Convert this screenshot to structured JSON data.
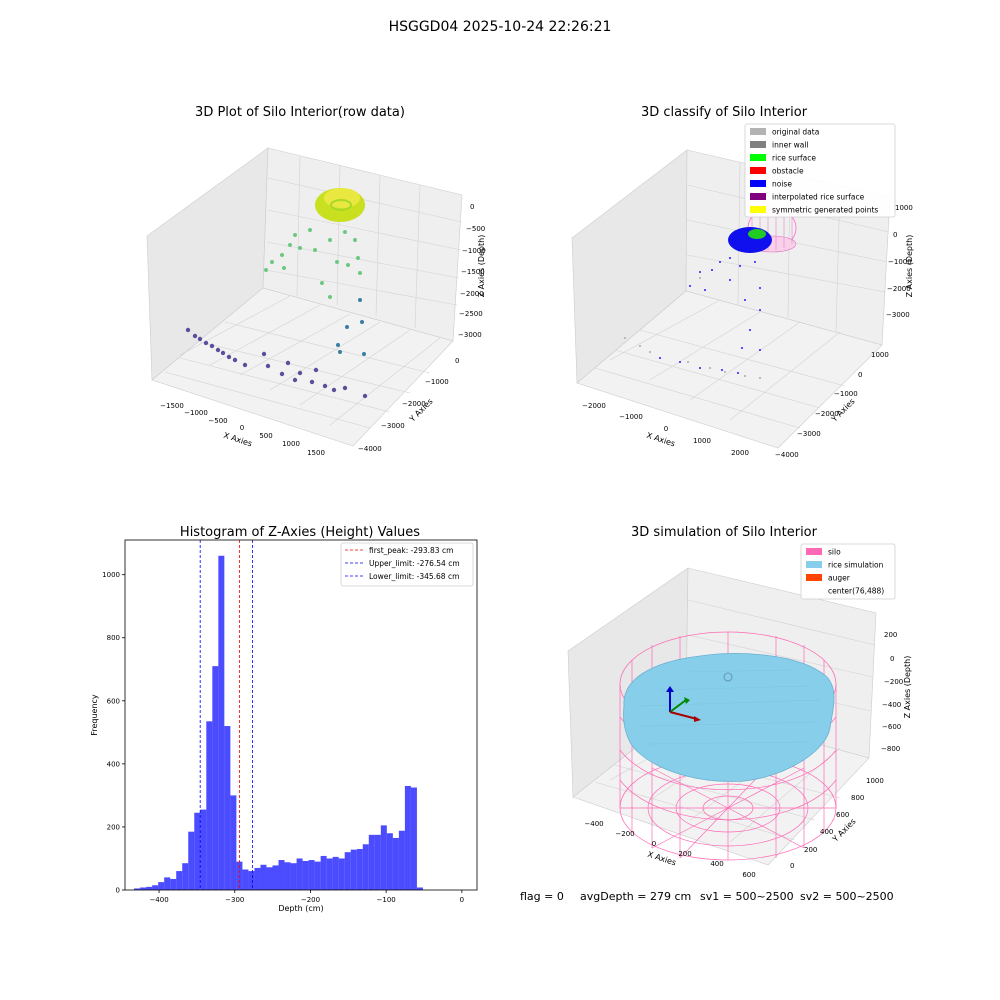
{
  "figure": {
    "suptitle": "HSGGD04 2025-10-24 22:26:21"
  },
  "panels": {
    "raw": {
      "title": "3D Plot of Silo Interior(row data)",
      "xlabel": "X Axies",
      "ylabel": "Y Axies",
      "zlabel": "Z Axies (Depth)",
      "xticks": [
        "−1500",
        "−1000",
        "−500",
        "0",
        "500",
        "1000",
        "1500"
      ],
      "yticks": [
        "0",
        "−1000",
        "−2000",
        "−3000",
        "−4000"
      ],
      "zticks": [
        "0",
        "−500",
        "−1000",
        "−1500",
        "−2000",
        "−2500",
        "−3000"
      ]
    },
    "classify": {
      "title": "3D classify of Silo Interior",
      "xlabel": "X Axies",
      "ylabel": "Y Axies",
      "zlabel": "Z Axies (Depth)",
      "xticks": [
        "−2000",
        "−1000",
        "0",
        "1000",
        "2000"
      ],
      "yticks": [
        "1000",
        "0",
        "−1000",
        "−2000",
        "−3000",
        "−4000"
      ],
      "zticks": [
        "1000",
        "0",
        "−1000",
        "−2000",
        "−3000"
      ],
      "legend": [
        {
          "label": "original data",
          "color": "#b3b3b3"
        },
        {
          "label": "inner wall",
          "color": "#808080"
        },
        {
          "label": "rice surface",
          "color": "#00ff00"
        },
        {
          "label": "obstacle",
          "color": "#ff0000"
        },
        {
          "label": "noise",
          "color": "#0000ff"
        },
        {
          "label": "interpolated rice surface",
          "color": "#800080"
        },
        {
          "label": "symmetric generated points",
          "color": "#ffff00"
        }
      ]
    },
    "histogram": {
      "title": "Histogram of Z-Axies (Height) Values",
      "xlabel": "Depth (cm)",
      "ylabel": "Frequency",
      "xticks": [
        "−400",
        "−300",
        "−200",
        "−100",
        "0"
      ],
      "yticks": [
        "0",
        "200",
        "400",
        "600",
        "800",
        "1000"
      ],
      "legend": [
        {
          "label": "first_peak: -293.83 cm",
          "color": "#ff0000"
        },
        {
          "label": "Upper_limit: -276.54 cm",
          "color": "#0000ff"
        },
        {
          "label": "Lower_limit: -345.68 cm",
          "color": "#0000ff"
        }
      ]
    },
    "simulation": {
      "title": "3D simulation of Silo Interior",
      "xlabel": "X Axies",
      "ylabel": "Y Axies",
      "zlabel": "Z Axies (Depth)",
      "xticks": [
        "−400",
        "−200",
        "0",
        "200",
        "400",
        "600"
      ],
      "yticks": [
        "0",
        "200",
        "400",
        "600",
        "800",
        "1000"
      ],
      "zticks": [
        "200",
        "0",
        "−200",
        "−400",
        "−600",
        "−800"
      ],
      "legend": [
        {
          "label": "silo",
          "color": "#ff69b4"
        },
        {
          "label": "rice simulation",
          "color": "#87ceeb"
        },
        {
          "label": "auger",
          "color": "#ff4500"
        },
        {
          "label": "center(76,488)",
          "color": ""
        }
      ]
    }
  },
  "footer": {
    "flag": "flag = 0",
    "avg": "avgDepth = 279 cm",
    "sv1": "sv1 = 500~2500",
    "sv2": "sv2 = 500~2500"
  },
  "chart_data": [
    {
      "type": "scatter",
      "title": "3D Plot of Silo Interior(row data)",
      "xlabel": "X Axies",
      "ylabel": "Y Axies",
      "zlabel": "Z Axies (Depth)",
      "xlim": [
        -1700,
        1700
      ],
      "ylim": [
        -4000,
        300
      ],
      "zlim": [
        -3200,
        200
      ],
      "colormap": "viridis",
      "note": "point cloud: dense yellow ring near the top, sparse green points falling, purple points along the floor"
    },
    {
      "type": "scatter",
      "title": "3D classify of Silo Interior",
      "xlabel": "X Axies",
      "ylabel": "Y Axies",
      "zlabel": "Z Axies (Depth)",
      "xlim": [
        -2200,
        2200
      ],
      "ylim": [
        -4000,
        1200
      ],
      "zlim": [
        -3200,
        1200
      ],
      "series": [
        {
          "name": "original data"
        },
        {
          "name": "inner wall"
        },
        {
          "name": "rice surface"
        },
        {
          "name": "obstacle"
        },
        {
          "name": "noise"
        },
        {
          "name": "interpolated rice surface"
        },
        {
          "name": "symmetric generated points"
        }
      ]
    },
    {
      "type": "bar",
      "title": "Histogram of Z-Axies (Height) Values",
      "xlabel": "Depth (cm)",
      "ylabel": "Frequency",
      "xlim": [
        -445,
        20
      ],
      "ylim": [
        0,
        1110
      ],
      "bin_start": -433,
      "bin_width": 7.95,
      "values": [
        5,
        8,
        10,
        15,
        25,
        40,
        35,
        60,
        85,
        185,
        245,
        255,
        535,
        710,
        1060,
        520,
        300,
        90,
        65,
        60,
        70,
        80,
        72,
        78,
        95,
        88,
        85,
        100,
        92,
        95,
        90,
        108,
        100,
        105,
        100,
        120,
        128,
        130,
        145,
        175,
        175,
        205,
        180,
        165,
        188,
        330,
        325,
        8
      ],
      "lines": [
        {
          "label": "first_peak: -293.83 cm",
          "x": -293.83,
          "color": "#ff0000"
        },
        {
          "label": "Upper_limit: -276.54 cm",
          "x": -276.54,
          "color": "#0000ff"
        },
        {
          "label": "Lower_limit: -345.68 cm",
          "x": -345.68,
          "color": "#0000ff"
        }
      ]
    },
    {
      "type": "surface",
      "title": "3D simulation of Silo Interior",
      "xlabel": "X Axies",
      "ylabel": "Y Axies",
      "zlabel": "Z Axies (Depth)",
      "xlim": [
        -500,
        650
      ],
      "ylim": [
        -50,
        1050
      ],
      "zlim": [
        -900,
        300
      ],
      "series": [
        {
          "name": "silo"
        },
        {
          "name": "rice simulation"
        },
        {
          "name": "auger"
        }
      ],
      "center": [
        76,
        488
      ]
    }
  ]
}
